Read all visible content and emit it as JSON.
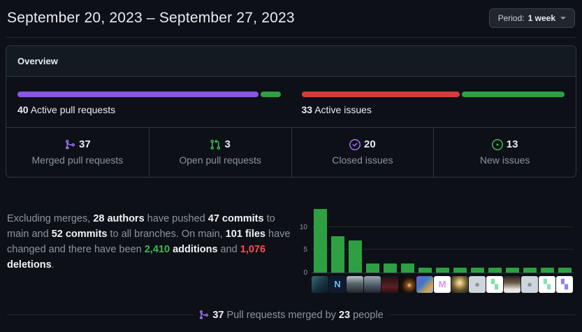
{
  "header": {
    "title": "September 20, 2023 – September 27, 2023",
    "period_button": {
      "prefix": "Period:",
      "value": "1 week"
    }
  },
  "overview": {
    "title": "Overview",
    "pull_requests": {
      "count": "40",
      "label": "Active pull requests",
      "bar": {
        "merged_width": "92.5%",
        "merged_color": "#8957e5",
        "open_width": "7.5%",
        "open_color": "#2ea043"
      }
    },
    "issues": {
      "count": "33",
      "label": "Active issues",
      "bar": {
        "closed_width": "60.6%",
        "closed_color": "#d23f3b",
        "new_width": "39.4%",
        "new_color": "#2ea043"
      }
    },
    "stats": [
      {
        "icon": "git-merge-icon",
        "color": "#a371f7",
        "value": "37",
        "label": "Merged pull requests"
      },
      {
        "icon": "git-pull-request-icon",
        "color": "#3fb950",
        "value": "3",
        "label": "Open pull requests"
      },
      {
        "icon": "issue-closed-icon",
        "color": "#a371f7",
        "value": "20",
        "label": "Closed issues"
      },
      {
        "icon": "issue-opened-icon",
        "color": "#3fb950",
        "value": "13",
        "label": "New issues"
      }
    ]
  },
  "summary": {
    "segments": [
      {
        "text": "Excluding merges, ",
        "style": "muted"
      },
      {
        "text": "28 authors",
        "style": "strong"
      },
      {
        "text": " have pushed ",
        "style": "muted"
      },
      {
        "text": "47 commits",
        "style": "strong"
      },
      {
        "text": " to main and ",
        "style": "muted"
      },
      {
        "text": "52 commits",
        "style": "strong"
      },
      {
        "text": " to all branches. On main, ",
        "style": "muted"
      },
      {
        "text": "101 files",
        "style": "strong"
      },
      {
        "text": " have changed and there have been ",
        "style": "muted"
      },
      {
        "text": "2,410",
        "style": "add"
      },
      {
        "text": " ",
        "style": "muted"
      },
      {
        "text": "additions",
        "style": "strong"
      },
      {
        "text": " and ",
        "style": "muted"
      },
      {
        "text": "1,076",
        "style": "del"
      },
      {
        "text": " ",
        "style": "muted"
      },
      {
        "text": "deletions",
        "style": "strong"
      },
      {
        "text": ".",
        "style": "muted"
      }
    ]
  },
  "chart_data": {
    "type": "bar",
    "title": "Commits per author (axis labels only; authors shown as avatars)",
    "values": [
      14,
      8,
      7,
      2,
      2,
      2,
      1,
      1,
      1,
      1,
      1,
      1,
      1,
      1,
      1
    ],
    "yticks": [
      0,
      5,
      10
    ],
    "ylim": [
      0,
      14
    ],
    "bar_color": "#2ea043",
    "grid": "horizontal lines at 0, 5, 10",
    "legend": "none",
    "xlabel": "",
    "ylabel": ""
  },
  "avatars": [
    {
      "bg": "linear-gradient(135deg,#3d6b74 0%,#16323c 55%,#0b1c26 100%)",
      "glyph": "",
      "glyph_color": ""
    },
    {
      "bg": "#0f1b2d",
      "glyph": "N",
      "glyph_color": "#6cb6ff"
    },
    {
      "bg": "linear-gradient(180deg,#b9c4cc 0%,#5a646c 45%,#23272b 100%)",
      "glyph": "",
      "glyph_color": ""
    },
    {
      "bg": "linear-gradient(180deg,#9aa5b1 0%,#4a5563 60%,#20262e 100%)",
      "glyph": "",
      "glyph_color": ""
    },
    {
      "bg": "linear-gradient(180deg,#1b1316 0%,#5c1f24 65%,#2a0f12 100%)",
      "glyph": "",
      "glyph_color": ""
    },
    {
      "bg": "radial-gradient(circle at 62% 55%, #ffd27a 0%, #8a4d1f 18%, #1a120a 55%, #06070a 100%)",
      "glyph": "",
      "glyph_color": ""
    },
    {
      "bg": "linear-gradient(135deg,#7a5bd6 0%,#3a79c9 40%,#d9a24a 75%,#7db1e8 100%)",
      "glyph": "",
      "glyph_color": ""
    },
    {
      "bg": "#ffffff",
      "glyph": "M",
      "glyph_color": "#dd8fe8"
    },
    {
      "bg": "radial-gradient(circle at 50% 40%, #f5e9c8 0%, #caa95e 25%, #6b5a33 55%, #201c12 100%)",
      "glyph": "",
      "glyph_color": ""
    },
    {
      "bg": "#cdd5dd",
      "glyph": "●",
      "glyph_color": "#8c959f"
    },
    {
      "bg": "#ffffff",
      "glyph": "▚",
      "glyph_color": "#7ee2a8"
    },
    {
      "bg": "linear-gradient(180deg,#2a2420 0%,#6e5a4a 40%,#e9e6e1 80%)",
      "glyph": "",
      "glyph_color": ""
    },
    {
      "bg": "#cdd5dd",
      "glyph": "●",
      "glyph_color": "#8c959f"
    },
    {
      "bg": "#ffffff",
      "glyph": "▚",
      "glyph_color": "#8ae0b8"
    },
    {
      "bg": "#ffffff",
      "glyph": "▚",
      "glyph_color": "#8f83ea"
    }
  ],
  "footer": {
    "segments": [
      {
        "text": "37",
        "style": "strong"
      },
      {
        "text": " Pull requests merged by ",
        "style": "muted"
      },
      {
        "text": "23",
        "style": "strong"
      },
      {
        "text": " people",
        "style": "muted"
      }
    ]
  },
  "colors": {
    "page_bg": "#0d1117",
    "panel_border": "#30363d",
    "panel_header_bg": "#141a22",
    "muted_text": "#8b949e",
    "bright_text": "#f0f3f6",
    "purple": "#8957e5",
    "purple_icon": "#a371f7",
    "green": "#2ea043",
    "green_icon": "#3fb950",
    "red": "#d23f3b",
    "red_text": "#f85149"
  }
}
